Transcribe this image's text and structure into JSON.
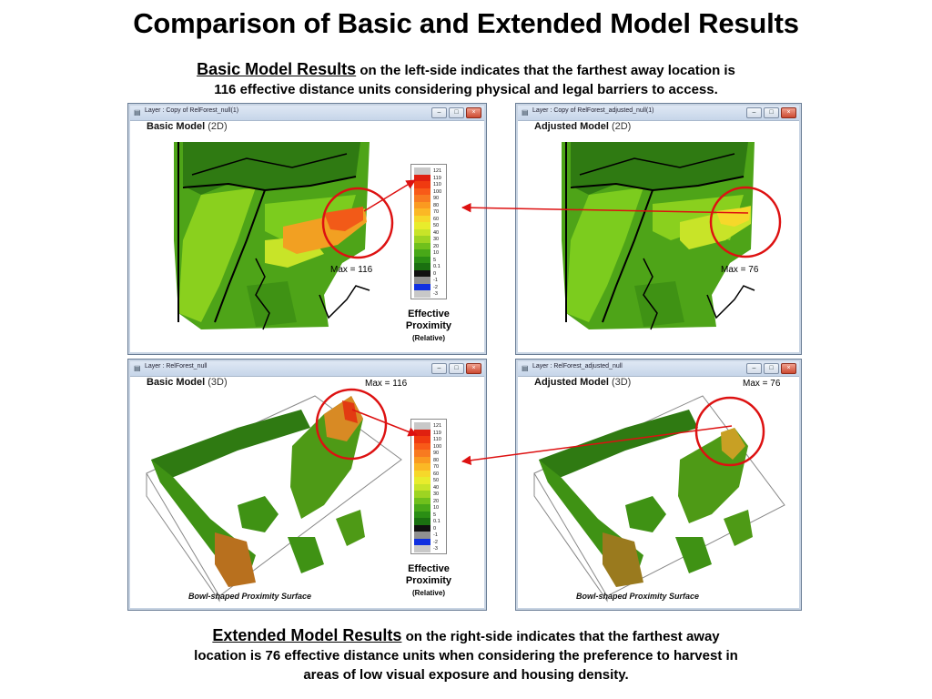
{
  "title": "Comparison of Basic and Extended Model Results",
  "caption_top": {
    "lead": "Basic Model Results",
    "rest_line1": " on the left-side indicates that the farthest away location is",
    "rest_line2": "116 effective distance units considering physical and legal barriers to access."
  },
  "caption_bottom": {
    "lead": "Extended Model Results",
    "rest_line1": " on the right-side indicates that the farthest away",
    "rest_line2": "location is 76 effective distance units when considering the preference to harvest in",
    "rest_line3": "areas of low visual exposure and housing density."
  },
  "windows": {
    "basic_2d": {
      "title_bar": "Layer : Copy of RelForest_null(1)",
      "model": "Basic Model",
      "dim": "(2D)",
      "max": "Max = 116"
    },
    "adjusted_2d": {
      "title_bar": "Layer : Copy of RelForest_adjusted_null(1)",
      "model": "Adjusted Model",
      "dim": "(2D)",
      "max": "Max = 76"
    },
    "basic_3d": {
      "title_bar": "Layer : RelForest_null",
      "model": "Basic Model",
      "dim": "(3D)",
      "max": "Max = 116",
      "footer": "Bowl-shaped Proximity Surface"
    },
    "adjusted_3d": {
      "title_bar": "Layer : RelForest_adjusted_null",
      "model": "Adjusted Model",
      "dim": "(3D)",
      "max": "Max = 76",
      "footer": "Bowl-shaped Proximity Surface"
    }
  },
  "window_buttons": {
    "minimize": "–",
    "maximize": "□",
    "close": "×"
  },
  "legend": {
    "title_line1": "Effective",
    "title_line2": "Proximity",
    "subtitle": "(Relative)",
    "entries": [
      {
        "label": "121",
        "color": "#c8c8c8"
      },
      {
        "label": "119",
        "color": "#e02010"
      },
      {
        "label": "110",
        "color": "#f03a10"
      },
      {
        "label": "100",
        "color": "#f85a18"
      },
      {
        "label": "90",
        "color": "#f87a20"
      },
      {
        "label": "80",
        "color": "#fa9a20"
      },
      {
        "label": "70",
        "color": "#fbb825"
      },
      {
        "label": "60",
        "color": "#f6d82a"
      },
      {
        "label": "50",
        "color": "#e8ec2c"
      },
      {
        "label": "40",
        "color": "#c8e428"
      },
      {
        "label": "30",
        "color": "#9ed422"
      },
      {
        "label": "20",
        "color": "#70c01c"
      },
      {
        "label": "10",
        "color": "#48a818"
      },
      {
        "label": "5",
        "color": "#2a8e14"
      },
      {
        "label": "0.1",
        "color": "#1a7010"
      },
      {
        "label": "0",
        "color": "#101010"
      },
      {
        "label": "-1",
        "color": "#909090"
      },
      {
        "label": "-2",
        "color": "#1030e0"
      },
      {
        "label": "-3",
        "color": "#c8c8c8"
      }
    ]
  },
  "colors": {
    "circle": "#dd1111",
    "arrow": "#dd1111",
    "forest_dark": "#2f7a12",
    "forest_light": "#7ccc1e",
    "hot": "#f2a022",
    "barrier": "#000000"
  }
}
